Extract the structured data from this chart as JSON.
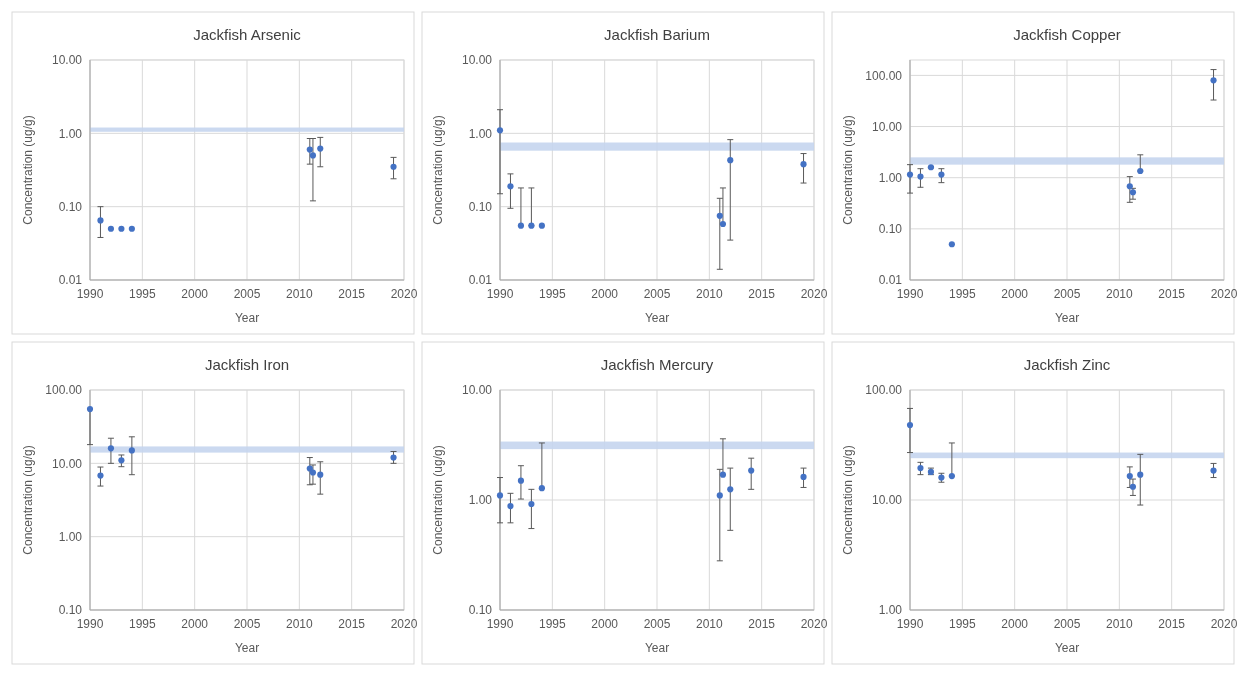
{
  "chart_data": [
    {
      "type": "scatter",
      "title": "Jackfish Arsenic",
      "xlabel": "Year",
      "ylabel": "Concentration (ug/g)",
      "log": "y",
      "grid": true,
      "marker": "circle",
      "xlim": [
        1990,
        2020
      ],
      "xticks": [
        1990,
        1995,
        2000,
        2005,
        2010,
        2015,
        2020
      ],
      "ylim": [
        0.01,
        10
      ],
      "yticks": [
        {
          "value": 0.01,
          "label": "0.01"
        },
        {
          "value": 0.1,
          "label": "0.10"
        },
        {
          "value": 1,
          "label": "1.00"
        },
        {
          "value": 10,
          "label": "10.00"
        }
      ],
      "bands": [
        {
          "axis": "y",
          "from": 1.05,
          "to": 1.2,
          "color": "#c5d5ee"
        }
      ],
      "series": [
        {
          "color": "#4472c4",
          "x": [
            1991,
            1992,
            1993,
            1994,
            2011,
            2011.3,
            2012,
            2019
          ],
          "values": [
            0.065,
            0.05,
            0.05,
            0.05,
            0.6,
            0.5,
            0.62,
            0.35
          ],
          "errors": [
            [
              0.038,
              0.1
            ],
            null,
            null,
            null,
            [
              0.38,
              0.85
            ],
            [
              0.12,
              0.85
            ],
            [
              0.35,
              0.88
            ],
            [
              0.24,
              0.47
            ]
          ]
        }
      ]
    },
    {
      "type": "scatter",
      "title": "Jackfish Barium",
      "xlabel": "Year",
      "ylabel": "Concentration (ug/g)",
      "log": "y",
      "grid": true,
      "marker": "circle",
      "xlim": [
        1990,
        2020
      ],
      "xticks": [
        1990,
        1995,
        2000,
        2005,
        2010,
        2015,
        2020
      ],
      "ylim": [
        0.01,
        10
      ],
      "yticks": [
        {
          "value": 0.01,
          "label": "0.01"
        },
        {
          "value": 0.1,
          "label": "0.10"
        },
        {
          "value": 1,
          "label": "1.00"
        },
        {
          "value": 10,
          "label": "10.00"
        }
      ],
      "bands": [
        {
          "axis": "y",
          "from": 0.58,
          "to": 0.75,
          "color": "#c5d5ee"
        }
      ],
      "series": [
        {
          "color": "#4472c4",
          "x": [
            1990,
            1991,
            1992,
            1993,
            1994,
            2011,
            2011.3,
            2012,
            2019
          ],
          "values": [
            1.1,
            0.19,
            0.055,
            0.055,
            0.055,
            0.075,
            0.058,
            0.43,
            0.38
          ],
          "errors": [
            [
              0.15,
              2.1
            ],
            [
              0.095,
              0.28
            ],
            [
              0.055,
              0.18
            ],
            [
              0.055,
              0.18
            ],
            null,
            [
              0.014,
              0.13
            ],
            [
              0.058,
              0.18
            ],
            [
              0.035,
              0.82
            ],
            [
              0.21,
              0.53
            ]
          ]
        }
      ]
    },
    {
      "type": "scatter",
      "title": "Jackfish Copper",
      "xlabel": "Year",
      "ylabel": "Concentration (ug/g)",
      "log": "y",
      "grid": true,
      "marker": "circle",
      "xlim": [
        1990,
        2020
      ],
      "xticks": [
        1990,
        1995,
        2000,
        2005,
        2010,
        2015,
        2020
      ],
      "ylim": [
        0.01,
        200
      ],
      "yticks": [
        {
          "value": 0.01,
          "label": "0.01"
        },
        {
          "value": 0.1,
          "label": "0.10"
        },
        {
          "value": 1,
          "label": "1.00"
        },
        {
          "value": 10,
          "label": "10.00"
        },
        {
          "value": 100,
          "label": "100.00"
        }
      ],
      "bands": [
        {
          "axis": "y",
          "from": 1.8,
          "to": 2.5,
          "color": "#c5d5ee"
        }
      ],
      "series": [
        {
          "color": "#4472c4",
          "x": [
            1990,
            1991,
            1992,
            1993,
            1994,
            2011,
            2011.3,
            2012,
            2019
          ],
          "values": [
            1.15,
            1.05,
            1.6,
            1.15,
            0.05,
            0.68,
            0.52,
            1.35,
            80
          ],
          "errors": [
            [
              0.5,
              1.8
            ],
            [
              0.65,
              1.5
            ],
            [
              1.55,
              1.65
            ],
            [
              0.8,
              1.5
            ],
            null,
            [
              0.33,
              1.05
            ],
            [
              0.38,
              0.62
            ],
            [
              1.35,
              2.8
            ],
            [
              33,
              130
            ]
          ]
        }
      ]
    },
    {
      "type": "scatter",
      "title": "Jackfish Iron",
      "xlabel": "Year",
      "ylabel": "Concentration (ug/g)",
      "log": "y",
      "grid": true,
      "marker": "circle",
      "xlim": [
        1990,
        2020
      ],
      "xticks": [
        1990,
        1995,
        2000,
        2005,
        2010,
        2015,
        2020
      ],
      "ylim": [
        0.1,
        100
      ],
      "yticks": [
        {
          "value": 0.1,
          "label": "0.10"
        },
        {
          "value": 1,
          "label": "1.00"
        },
        {
          "value": 10,
          "label": "10.00"
        },
        {
          "value": 100,
          "label": "100.00"
        }
      ],
      "bands": [
        {
          "axis": "y",
          "from": 14,
          "to": 17,
          "color": "#c5d5ee"
        }
      ],
      "series": [
        {
          "color": "#4472c4",
          "x": [
            1990,
            1991,
            1992,
            1993,
            1994,
            2011,
            2011.3,
            2012,
            2019
          ],
          "values": [
            55,
            6.8,
            16,
            11,
            15,
            8.5,
            7.5,
            7,
            12
          ],
          "errors": [
            [
              18,
              55
            ],
            [
              4.9,
              8.9
            ],
            [
              10,
              22
            ],
            [
              9,
              13
            ],
            [
              7,
              23
            ],
            [
              5.1,
              12
            ],
            [
              5.2,
              9.5
            ],
            [
              3.8,
              10.5
            ],
            [
              10,
              14.5
            ]
          ]
        }
      ]
    },
    {
      "type": "scatter",
      "title": "Jackfish Mercury",
      "xlabel": "Year",
      "ylabel": "Concentration (ug/g)",
      "log": "y",
      "grid": true,
      "marker": "circle",
      "xlim": [
        1990,
        2020
      ],
      "xticks": [
        1990,
        1995,
        2000,
        2005,
        2010,
        2015,
        2020
      ],
      "ylim": [
        0.1,
        10
      ],
      "yticks": [
        {
          "value": 0.1,
          "label": "0.10"
        },
        {
          "value": 1,
          "label": "1.00"
        },
        {
          "value": 10,
          "label": "10.00"
        }
      ],
      "bands": [
        {
          "axis": "y",
          "from": 2.9,
          "to": 3.4,
          "color": "#c5d5ee"
        }
      ],
      "series": [
        {
          "color": "#4472c4",
          "x": [
            1990,
            1991,
            1992,
            1993,
            1994,
            2011,
            2011.3,
            2012,
            2014,
            2019
          ],
          "values": [
            1.1,
            0.88,
            1.5,
            0.92,
            1.28,
            1.1,
            1.7,
            1.25,
            1.85,
            1.62
          ],
          "errors": [
            [
              0.62,
              1.6
            ],
            [
              0.62,
              1.15
            ],
            [
              1.02,
              2.05
            ],
            [
              0.55,
              1.25
            ],
            [
              1.28,
              3.3
            ],
            [
              0.28,
              1.9
            ],
            [
              1.7,
              3.6
            ],
            [
              0.53,
              1.95
            ],
            [
              1.25,
              2.4
            ],
            [
              1.3,
              1.95
            ]
          ]
        }
      ]
    },
    {
      "type": "scatter",
      "title": "Jackfish Zinc",
      "xlabel": "Year",
      "ylabel": "Concentration (ug/g)",
      "log": "y",
      "grid": true,
      "marker": "circle",
      "xlim": [
        1990,
        2020
      ],
      "xticks": [
        1990,
        1995,
        2000,
        2005,
        2010,
        2015,
        2020
      ],
      "ylim": [
        1,
        100
      ],
      "yticks": [
        {
          "value": 1,
          "label": "1.00"
        },
        {
          "value": 10,
          "label": "10.00"
        },
        {
          "value": 100,
          "label": "100.00"
        }
      ],
      "bands": [
        {
          "axis": "y",
          "from": 24,
          "to": 27,
          "color": "#c5d5ee"
        }
      ],
      "series": [
        {
          "color": "#4472c4",
          "x": [
            1990,
            1991,
            1992,
            1993,
            1994,
            2011,
            2011.3,
            2012,
            2019
          ],
          "values": [
            48,
            19.5,
            18,
            16,
            16.5,
            16.5,
            13.2,
            17,
            18.5
          ],
          "errors": [
            [
              27,
              68
            ],
            [
              17,
              22
            ],
            [
              17,
              19.5
            ],
            [
              14.5,
              17.5
            ],
            [
              16.5,
              33
            ],
            [
              13,
              20
            ],
            [
              11,
              15.5
            ],
            [
              9,
              26
            ],
            [
              16,
              21.5
            ]
          ]
        }
      ]
    }
  ]
}
